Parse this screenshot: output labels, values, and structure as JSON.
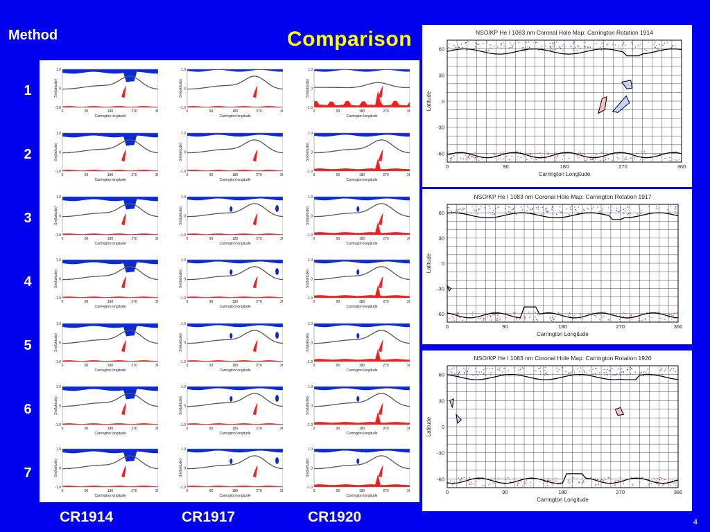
{
  "slide": {
    "method_label": "Method",
    "title": "Comparison",
    "slide_number": "4",
    "row_numbers": [
      "1",
      "2",
      "3",
      "4",
      "5",
      "6",
      "7"
    ],
    "column_labels": [
      "CR1914",
      "CR1917",
      "CR1920"
    ],
    "colors": {
      "background": "#0000ee",
      "title": "#ffff00",
      "open_positive": "#0b2bd8",
      "open_negative": "#ff1a1a",
      "neutral_line": "#555555"
    }
  },
  "chart_data": [
    {
      "type": "area",
      "name": "model-grid",
      "xlabel": "Carrington longitude",
      "ylabel": "Sin(latitude)",
      "x_ticks": [
        "0",
        "90",
        "180",
        "270",
        "360"
      ],
      "y_ticks": [
        "1.0",
        "0",
        "-1.0"
      ],
      "xlim": [
        0,
        360
      ],
      "ylim": [
        -1,
        1
      ],
      "rows": 7,
      "columns": [
        "CR1914",
        "CR1917",
        "CR1920"
      ]
    },
    {
      "type": "scatter",
      "name": "cr1914-map",
      "title": "NSO/KP He I 1083 nm Coronal Hole Map: Carrington Rotation 1914",
      "xlabel": "Carrington Longitude",
      "ylabel": "Latitude",
      "x_ticks": [
        "0",
        "90",
        "180",
        "270",
        "360"
      ],
      "y_ticks": [
        "60",
        "30",
        "0",
        "-30",
        "-60"
      ],
      "xlim": [
        0,
        360
      ],
      "ylim": [
        -70,
        70
      ],
      "grid": true
    },
    {
      "type": "scatter",
      "name": "cr1917-map",
      "title": "NSO/KP He I 1083 nm Coronal Hole Map: Carrington Rotation 1917",
      "xlabel": "Carrington Longitude",
      "ylabel": "Latitude",
      "x_ticks": [
        "0",
        "90",
        "180",
        "270",
        "360"
      ],
      "y_ticks": [
        "60",
        "30",
        "0",
        "-30",
        "-60"
      ],
      "xlim": [
        0,
        360
      ],
      "ylim": [
        -70,
        70
      ],
      "grid": true
    },
    {
      "type": "scatter",
      "name": "cr1920-map",
      "title": "NSO/KP He I 1083 nm Coronal Hole Map: Carrington Rotation 1920",
      "xlabel": "Carrington Longitude",
      "ylabel": "Latitude",
      "x_ticks": [
        "0",
        "90",
        "180",
        "270",
        "360"
      ],
      "y_ticks": [
        "60",
        "30",
        "0",
        "-30",
        "-60"
      ],
      "xlim": [
        0,
        360
      ],
      "ylim": [
        -70,
        70
      ],
      "grid": true
    }
  ]
}
